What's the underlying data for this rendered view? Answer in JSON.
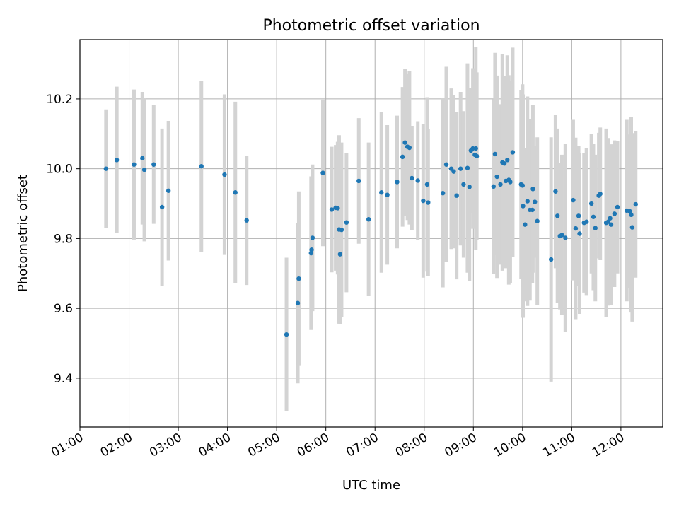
{
  "chart_data": {
    "type": "scatter",
    "title": "Photometric offset variation",
    "xlabel": "UTC time",
    "ylabel": "Photometric offset",
    "x_unit": "hours UTC",
    "xlim": [
      1.0,
      12.85
    ],
    "ylim": [
      9.26,
      10.37
    ],
    "grid": true,
    "xticks": [
      1,
      2,
      3,
      4,
      5,
      6,
      7,
      8,
      9,
      10,
      11,
      12
    ],
    "xtick_labels": [
      "01:00",
      "02:00",
      "03:00",
      "04:00",
      "05:00",
      "06:00",
      "07:00",
      "08:00",
      "09:00",
      "10:00",
      "11:00",
      "12:00"
    ],
    "yticks": [
      9.4,
      9.6,
      9.8,
      10.0,
      10.2
    ],
    "ytick_labels": [
      "9.4",
      "9.6",
      "9.8",
      "10.0",
      "10.2"
    ],
    "colors": {
      "points": "#1f77b4",
      "errorbars": "#d3d3d3",
      "grid": "#b0b0b0"
    },
    "series": [
      {
        "x": [
          1.53,
          1.75,
          2.1,
          2.27,
          2.31,
          2.5,
          2.67,
          2.8,
          3.47,
          3.94,
          4.16,
          4.39,
          5.2,
          5.43,
          5.45,
          5.7,
          5.71,
          5.73,
          5.94,
          6.12,
          6.2,
          6.24,
          6.27,
          6.29,
          6.32,
          6.42,
          6.67,
          6.87,
          7.13,
          7.25,
          7.45,
          7.56,
          7.61,
          7.66,
          7.7,
          7.75,
          7.87,
          7.98,
          8.06,
          8.08,
          8.38,
          8.45,
          8.55,
          8.6,
          8.66,
          8.74,
          8.8,
          8.88,
          8.92,
          8.95,
          8.99,
          9.03,
          9.05,
          9.07,
          9.41,
          9.44,
          9.48,
          9.55,
          9.59,
          9.63,
          9.66,
          9.69,
          9.72,
          9.75,
          9.8,
          9.97,
          10.0,
          10.01,
          10.05,
          10.1,
          10.15,
          10.2,
          10.21,
          10.25,
          10.3,
          10.58,
          10.67,
          10.71,
          10.76,
          10.8,
          10.87,
          11.03,
          11.08,
          11.14,
          11.16,
          11.25,
          11.3,
          11.4,
          11.44,
          11.48,
          11.55,
          11.58,
          11.7,
          11.74,
          11.78,
          11.8,
          11.87,
          11.93,
          12.12,
          12.18,
          12.21,
          12.23,
          12.3
        ],
        "y": [
          10.0,
          10.025,
          10.012,
          10.03,
          9.997,
          10.012,
          9.89,
          9.937,
          10.007,
          9.983,
          9.932,
          9.852,
          9.525,
          9.615,
          9.685,
          9.758,
          9.768,
          9.802,
          9.988,
          9.883,
          9.888,
          9.887,
          9.826,
          9.755,
          9.825,
          9.846,
          9.965,
          9.855,
          9.932,
          9.925,
          9.962,
          10.034,
          10.075,
          10.063,
          10.06,
          9.973,
          9.966,
          9.908,
          9.955,
          9.903,
          9.93,
          10.012,
          10.0,
          9.992,
          9.923,
          10.0,
          9.955,
          10.002,
          9.948,
          10.052,
          10.058,
          10.04,
          10.058,
          10.036,
          9.949,
          10.042,
          9.977,
          9.955,
          10.018,
          10.015,
          9.965,
          10.025,
          9.968,
          9.962,
          10.047,
          9.955,
          9.952,
          9.893,
          9.84,
          9.907,
          9.882,
          9.882,
          9.942,
          9.905,
          9.85,
          9.74,
          9.935,
          9.865,
          9.807,
          9.81,
          9.802,
          9.91,
          9.829,
          9.865,
          9.814,
          9.845,
          9.848,
          9.9,
          9.862,
          9.83,
          9.923,
          9.928,
          9.845,
          9.848,
          9.858,
          9.84,
          9.871,
          9.89,
          9.88,
          9.878,
          9.868,
          9.832,
          9.898
        ],
        "yerr": [
          0.17,
          0.21,
          0.215,
          0.19,
          0.205,
          0.17,
          0.225,
          0.2,
          0.245,
          0.23,
          0.26,
          0.185,
          0.22,
          0.23,
          0.25,
          0.22,
          0.18,
          0.21,
          0.21,
          0.18,
          0.18,
          0.19,
          0.27,
          0.2,
          0.25,
          0.2,
          0.18,
          0.22,
          0.23,
          0.2,
          0.19,
          0.2,
          0.21,
          0.21,
          0.22,
          0.15,
          0.17,
          0.22,
          0.25,
          0.21,
          0.27,
          0.28,
          0.23,
          0.22,
          0.24,
          0.22,
          0.21,
          0.3,
          0.27,
          0.18,
          0.23,
          0.21,
          0.29,
          0.24,
          0.25,
          0.29,
          0.29,
          0.23,
          0.31,
          0.25,
          0.25,
          0.3,
          0.3,
          0.29,
          0.3,
          0.27,
          0.29,
          0.32,
          0.22,
          0.3,
          0.26,
          0.21,
          0.24,
          0.16,
          0.24,
          0.35,
          0.22,
          0.25,
          0.21,
          0.23,
          0.27,
          0.23,
          0.26,
          0.2,
          0.23,
          0.2,
          0.21,
          0.2,
          0.21,
          0.21,
          0.18,
          0.19,
          0.27,
          0.24,
          0.21,
          0.23,
          0.21,
          0.19,
          0.26,
          0.22,
          0.28,
          0.27,
          0.21
        ]
      }
    ]
  }
}
